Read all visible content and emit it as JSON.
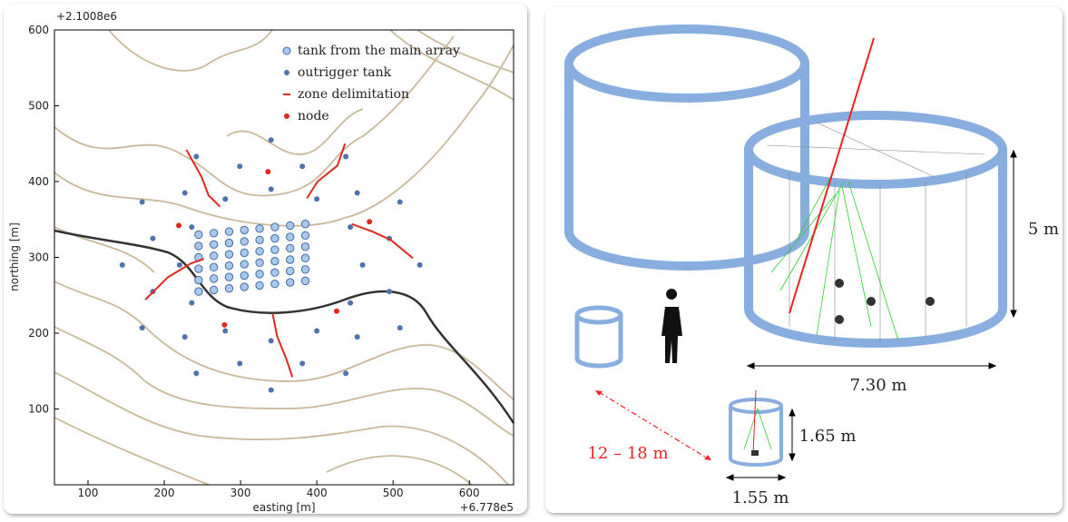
{
  "chart_data": {
    "type": "scatter",
    "x_offset_label": "+6.778e5",
    "y_offset_label": "+2.1008e6",
    "xlabel": "easting [m]",
    "ylabel": "northing [m]",
    "xlim": [
      56,
      658
    ],
    "ylim": [
      0,
      600
    ],
    "xticks": [
      100,
      200,
      300,
      400,
      500,
      600
    ],
    "yticks": [
      100,
      200,
      300,
      400,
      500,
      600
    ],
    "legend": "upper right",
    "series": [
      {
        "name": "tank from the main array",
        "color": "#a9c8ec",
        "edge": "#3f6aa8",
        "x": [
          245,
          265,
          285,
          305,
          325,
          345,
          365,
          385,
          245,
          265,
          285,
          305,
          325,
          345,
          365,
          385,
          245,
          265,
          285,
          305,
          325,
          345,
          365,
          385,
          245,
          265,
          285,
          305,
          325,
          345,
          365,
          385,
          245,
          265,
          285,
          305,
          325,
          345,
          365,
          385,
          245,
          265,
          285,
          305,
          325,
          345,
          365,
          385
        ],
        "y": [
          255,
          257,
          259,
          261,
          263,
          265,
          267,
          269,
          270,
          272,
          274,
          276,
          278,
          280,
          282,
          284,
          285,
          287,
          289,
          291,
          293,
          295,
          297,
          299,
          300,
          302,
          304,
          306,
          308,
          310,
          312,
          314,
          315,
          317,
          319,
          321,
          323,
          325,
          327,
          329,
          330,
          332,
          334,
          336,
          338,
          340,
          342,
          344
        ]
      },
      {
        "name": "outrigger tank",
        "color": "#4f74ad",
        "x": [
          460,
          444,
          400,
          340,
          280,
          236,
          220,
          236,
          280,
          340,
          400,
          444,
          495,
          453,
          381,
          299,
          227,
          185,
          185,
          227,
          299,
          381,
          453,
          495,
          535,
          509,
          438,
          340,
          242,
          171,
          145,
          171,
          242,
          340,
          438,
          509
        ],
        "y": [
          290,
          340,
          377,
          390,
          377,
          340,
          290,
          240,
          203,
          190,
          203,
          240,
          325,
          385,
          420,
          420,
          385,
          325,
          255,
          195,
          160,
          160,
          195,
          255,
          290,
          373,
          433,
          455,
          433,
          373,
          290,
          207,
          147,
          125,
          147,
          207
        ]
      },
      {
        "name": "zone delimitation",
        "color": "#e0281e",
        "lines": [
          {
            "x": [
              229,
              249,
              258,
              273
            ],
            "y": [
              442,
              406,
              382,
              367
            ]
          },
          {
            "x": [
              437,
              427,
              401,
              387
            ],
            "y": [
              450,
              421,
              400,
              378
            ]
          },
          {
            "x": [
              175,
              205,
              235,
              252
            ],
            "y": [
              244,
              274,
              292,
              298
            ]
          },
          {
            "x": [
              446,
              473,
              497,
              526
            ],
            "y": [
              344,
              334,
              323,
              299
            ]
          },
          {
            "x": [
              342,
              348,
              360,
              368
            ],
            "y": [
              226,
              196,
              166,
              142
            ]
          }
        ]
      },
      {
        "name": "node",
        "color": "#e0281e",
        "x": [
          336,
          219,
          469,
          279,
          426
        ],
        "y": [
          413,
          342,
          347,
          211,
          229
        ]
      }
    ]
  },
  "diagram": {
    "labels": [
      "5 m",
      "7.30 m",
      "1.65 m",
      "1.55 m",
      "12 – 18 m"
    ]
  }
}
